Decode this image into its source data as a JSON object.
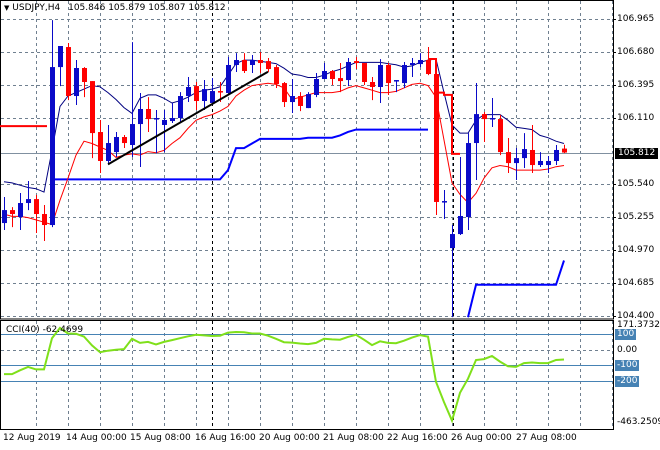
{
  "header": {
    "menu_icon": "triangle-down-icon",
    "symbol_timeframe": "USDJPY,H4",
    "ohlc": "105.846 105.879 105.807 105.812"
  },
  "time_axis": [
    "12 Aug 2019",
    "14 Aug 00:00",
    "15 Aug 08:00",
    "16 Aug 16:00",
    "20 Aug 00:00",
    "21 Aug 08:00",
    "22 Aug 16:00",
    "26 Aug 00:00",
    "27 Aug 08:00"
  ],
  "colors": {
    "bull": "#0a0ac8",
    "bear": "#ff0000",
    "upper_band": "#000080",
    "lower_band": "#ff0000",
    "support": "#0000ff",
    "trendline": "#000000",
    "cci": "#7fe01a",
    "cci_levels": "#4682b4",
    "grid": "#708090"
  },
  "chart_data": [
    {
      "type": "candlestick",
      "symbol": "USDJPY",
      "timeframe": "H4",
      "ylim": [
        104.383,
        107.112
      ],
      "y_ticks": [
        "106.965",
        "106.680",
        "106.395",
        "106.110",
        "105.540",
        "105.255",
        "104.970",
        "104.685",
        "104.400"
      ],
      "current_price": "105.812",
      "candles": [
        [
          105.203,
          105.428,
          105.143,
          105.315
        ],
        [
          105.315,
          105.341,
          105.168,
          105.281
        ],
        [
          105.255,
          105.462,
          105.143,
          105.376
        ],
        [
          105.376,
          105.566,
          105.315,
          105.41
        ],
        [
          105.41,
          105.445,
          105.117,
          105.281
        ],
        [
          105.281,
          105.359,
          105.048,
          105.186
        ],
        [
          105.186,
          106.956,
          105.168,
          106.55
        ],
        [
          106.55,
          106.732,
          106.386,
          106.732
        ],
        [
          106.723,
          106.758,
          106.265,
          106.3
        ],
        [
          106.3,
          106.611,
          106.222,
          106.542
        ],
        [
          106.542,
          106.55,
          106.291,
          106.421
        ],
        [
          106.429,
          106.429,
          105.764,
          105.98
        ],
        [
          105.989,
          106.093,
          105.635,
          105.739
        ],
        [
          105.739,
          106.05,
          105.713,
          105.894
        ],
        [
          105.816,
          105.989,
          105.773,
          105.946
        ],
        [
          105.946,
          105.963,
          105.851,
          105.894
        ],
        [
          105.877,
          106.766,
          105.773,
          106.058
        ],
        [
          106.058,
          106.326,
          105.687,
          106.188
        ],
        [
          106.188,
          106.291,
          105.989,
          106.101
        ],
        [
          106.101,
          106.179,
          105.807,
          106.11
        ],
        [
          106.05,
          106.179,
          105.816,
          106.093
        ],
        [
          106.084,
          106.24,
          106.067,
          106.11
        ],
        [
          106.11,
          106.334,
          106.075,
          106.3
        ],
        [
          106.3,
          106.464,
          106.248,
          106.378
        ],
        [
          106.386,
          106.421,
          106.179,
          106.257
        ],
        [
          106.257,
          106.438,
          106.179,
          106.36
        ],
        [
          106.24,
          106.455,
          106.222,
          106.343
        ],
        [
          106.343,
          106.421,
          106.248,
          106.334
        ],
        [
          106.326,
          106.637,
          106.309,
          106.568
        ],
        [
          106.568,
          106.671,
          106.507,
          106.611
        ],
        [
          106.611,
          106.671,
          106.499,
          106.516
        ],
        [
          106.568,
          106.654,
          106.499,
          106.611
        ],
        [
          106.611,
          106.68,
          106.499,
          106.585
        ],
        [
          106.602,
          106.628,
          106.507,
          106.533
        ],
        [
          106.55,
          106.568,
          106.369,
          106.404
        ],
        [
          106.412,
          106.421,
          106.205,
          106.248
        ],
        [
          106.248,
          106.447,
          106.153,
          106.3
        ],
        [
          106.3,
          106.334,
          106.17,
          106.214
        ],
        [
          106.196,
          106.334,
          106.196,
          106.317
        ],
        [
          106.309,
          106.499,
          106.291,
          106.447
        ],
        [
          106.447,
          106.585,
          106.447,
          106.516
        ],
        [
          106.516,
          106.525,
          106.395,
          106.447
        ],
        [
          106.455,
          106.585,
          106.334,
          106.429
        ],
        [
          106.438,
          106.628,
          106.386,
          106.594
        ],
        [
          106.602,
          106.637,
          106.533,
          106.585
        ],
        [
          106.585,
          106.585,
          106.395,
          106.421
        ],
        [
          106.421,
          106.464,
          106.265,
          106.378
        ],
        [
          106.378,
          106.619,
          106.24,
          106.568
        ],
        [
          106.568,
          106.585,
          106.309,
          106.412
        ],
        [
          106.429,
          106.438,
          106.334,
          106.438
        ],
        [
          106.412,
          106.594,
          106.369,
          106.568
        ],
        [
          106.568,
          106.628,
          106.464,
          106.585
        ],
        [
          106.576,
          106.671,
          106.55,
          106.611
        ],
        [
          106.611,
          106.723,
          106.481,
          106.49
        ],
        [
          106.49,
          106.499,
          105.272,
          105.385
        ],
        [
          105.385,
          105.488,
          105.238,
          105.393
        ],
        [
          104.987,
          105.186,
          104.391,
          105.108
        ],
        [
          105.108,
          105.773,
          105.1,
          105.264
        ],
        [
          105.255,
          105.98,
          105.143,
          105.894
        ],
        [
          105.894,
          106.412,
          105.575,
          106.144
        ],
        [
          106.144,
          106.162,
          105.903,
          106.101
        ],
        [
          106.11,
          106.283,
          106.032,
          106.11
        ],
        [
          106.101,
          106.136,
          105.79,
          105.816
        ],
        [
          105.816,
          105.937,
          105.635,
          105.721
        ],
        [
          105.721,
          105.851,
          105.575,
          105.764
        ],
        [
          105.764,
          105.98,
          105.678,
          105.842
        ],
        [
          105.834,
          106.05,
          105.635,
          105.704
        ],
        [
          105.704,
          105.816,
          105.687,
          105.739
        ],
        [
          105.704,
          105.782,
          105.635,
          105.739
        ],
        [
          105.739,
          105.877,
          105.704,
          105.834
        ],
        [
          105.846,
          105.879,
          105.807,
          105.812
        ]
      ],
      "upper_band": [
        105.56,
        105.55,
        105.53,
        105.51,
        105.5,
        105.47,
        105.83,
        106.21,
        106.3,
        106.33,
        106.36,
        106.39,
        106.38,
        106.33,
        106.27,
        106.2,
        106.15,
        106.28,
        106.31,
        106.31,
        106.28,
        106.24,
        106.26,
        106.29,
        106.33,
        106.35,
        106.36,
        106.38,
        106.48,
        106.58,
        106.61,
        106.61,
        106.6,
        106.59,
        106.58,
        106.54,
        106.49,
        106.48,
        106.46,
        106.46,
        106.48,
        106.51,
        106.53,
        106.56,
        106.59,
        106.59,
        106.59,
        106.59,
        106.58,
        106.57,
        106.55,
        106.56,
        106.59,
        106.61,
        106.62,
        106.33,
        106.05,
        105.98,
        105.98,
        106.09,
        106.14,
        106.14,
        106.14,
        106.09,
        106.03,
        106.02,
        106.01,
        105.96,
        105.94,
        105.91,
        105.89
      ],
      "lower_band": [
        105.28,
        105.26,
        105.26,
        105.25,
        105.23,
        105.21,
        105.19,
        105.4,
        105.59,
        105.79,
        105.91,
        105.89,
        105.86,
        105.83,
        105.77,
        105.79,
        105.8,
        105.79,
        105.82,
        105.81,
        105.83,
        105.89,
        105.94,
        106.02,
        106.09,
        106.12,
        106.14,
        106.17,
        106.21,
        106.3,
        106.35,
        106.39,
        106.4,
        106.41,
        106.4,
        106.37,
        106.27,
        106.29,
        106.31,
        106.33,
        106.33,
        106.33,
        106.34,
        106.37,
        106.39,
        106.37,
        106.35,
        106.33,
        106.33,
        106.34,
        106.37,
        106.4,
        106.41,
        106.39,
        106.29,
        105.92,
        105.55,
        105.45,
        105.38,
        105.46,
        105.59,
        105.68,
        105.7,
        105.69,
        105.66,
        105.66,
        105.66,
        105.66,
        105.67,
        105.69,
        105.7
      ],
      "support_step": [
        null,
        null,
        null,
        null,
        null,
        null,
        105.58,
        105.58,
        105.58,
        105.58,
        105.58,
        105.58,
        105.58,
        105.58,
        105.58,
        105.58,
        105.58,
        105.58,
        105.58,
        105.58,
        105.58,
        105.58,
        105.58,
        105.58,
        105.58,
        105.58,
        105.58,
        105.58,
        105.66,
        105.85,
        105.85,
        105.89,
        105.93,
        105.93,
        105.93,
        105.93,
        105.93,
        105.93,
        105.94,
        105.94,
        105.94,
        105.94,
        105.96,
        105.99,
        106.01,
        106.01,
        106.01,
        106.01,
        106.01,
        106.01,
        106.01,
        106.01,
        106.01,
        106.01,
        null,
        null,
        null,
        null,
        104.39,
        104.67,
        104.67,
        104.67,
        104.67,
        104.67,
        104.67,
        104.67,
        104.67,
        104.67,
        104.67,
        104.67,
        104.88
      ],
      "red_step": [
        [
          53,
          106.62
        ],
        [
          54,
          106.33
        ],
        [
          55,
          106.31
        ],
        [
          56,
          105.8
        ],
        [
          57,
          105.8
        ]
      ],
      "red_level": {
        "value": 106.04,
        "from": 0,
        "to": 5
      },
      "trendline": {
        "from": [
          13,
          105.71
        ],
        "to": [
          33,
          106.51
        ]
      }
    },
    {
      "type": "line",
      "title": "CCI(40)",
      "last_value": "-62.4699",
      "ylim": [
        -463.2509,
        171.3732
      ],
      "max_label": "171.3732",
      "min_label": "-463.2509",
      "levels": [
        {
          "value": 100,
          "label": "100"
        },
        {
          "value": 0,
          "label": "0.00"
        },
        {
          "value": -100,
          "label": "-100"
        },
        {
          "value": -200,
          "label": "-200"
        }
      ],
      "values": [
        -156,
        -156,
        -132,
        -110,
        -126,
        -126,
        74,
        140,
        104,
        102,
        84,
        28,
        -16,
        -6,
        0,
        4,
        70,
        44,
        50,
        34,
        50,
        62,
        74,
        86,
        96,
        92,
        88,
        90,
        110,
        114,
        112,
        104,
        104,
        90,
        70,
        48,
        46,
        40,
        36,
        44,
        70,
        66,
        64,
        82,
        96,
        64,
        30,
        54,
        44,
        42,
        58,
        78,
        94,
        84,
        -206,
        -336,
        -455,
        -276,
        -186,
        -66,
        -60,
        -40,
        -76,
        -106,
        -110,
        -86,
        -82,
        -86,
        -86,
        -66,
        -62.47
      ]
    }
  ]
}
